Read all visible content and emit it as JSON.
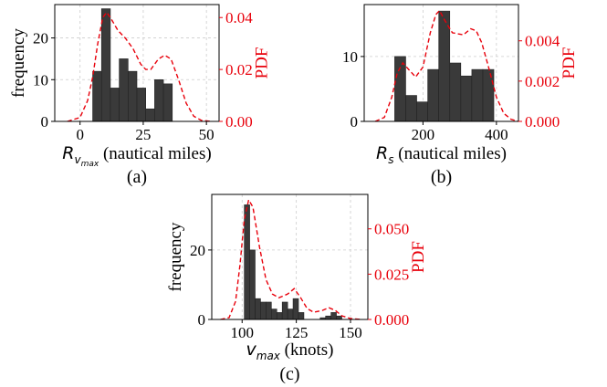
{
  "chart_data": [
    {
      "type": "bar",
      "panel_label": "(a)",
      "xlabel_symbol": "R",
      "xlabel_subscript": "v",
      "xlabel_subsubscript": "max",
      "xlabel_text": " (nautical miles)",
      "ylabel": "frequency",
      "y2label": "PDF",
      "xlim": [
        -10,
        55
      ],
      "ylim": [
        0,
        28
      ],
      "y2lim": [
        0,
        0.045
      ],
      "xticks": [
        "0",
        "25",
        "50"
      ],
      "xtick_values": [
        0,
        25,
        50
      ],
      "yticks": [
        "0",
        "10",
        "20"
      ],
      "ytick_values": [
        0,
        10,
        20
      ],
      "y2ticks": [
        "0.00",
        "0.02",
        "0.04"
      ],
      "y2tick_values": [
        0,
        0.02,
        0.04
      ],
      "grid": true,
      "bins": [
        [
          5,
          8.5,
          12
        ],
        [
          8.5,
          12,
          27
        ],
        [
          12,
          15.5,
          8
        ],
        [
          15.5,
          19,
          15
        ],
        [
          19,
          22.5,
          12
        ],
        [
          22.5,
          26,
          8
        ],
        [
          26,
          29.5,
          3
        ],
        [
          29.5,
          33,
          10
        ],
        [
          33,
          36.5,
          9
        ]
      ],
      "pdf": [
        [
          -5,
          0
        ],
        [
          0,
          0.0015
        ],
        [
          3,
          0.008
        ],
        [
          5,
          0.017
        ],
        [
          7,
          0.03
        ],
        [
          9,
          0.04
        ],
        [
          10.5,
          0.042
        ],
        [
          12,
          0.04
        ],
        [
          15,
          0.035
        ],
        [
          18,
          0.032
        ],
        [
          21,
          0.028
        ],
        [
          24,
          0.022
        ],
        [
          26,
          0.02
        ],
        [
          28,
          0.02
        ],
        [
          31,
          0.024
        ],
        [
          33.5,
          0.0255
        ],
        [
          36,
          0.024
        ],
        [
          39,
          0.016
        ],
        [
          42,
          0.007
        ],
        [
          45,
          0.002
        ],
        [
          48,
          0.0004
        ],
        [
          52,
          0
        ]
      ]
    },
    {
      "type": "bar",
      "panel_label": "(b)",
      "xlabel_symbol": "R",
      "xlabel_subscript": "s",
      "xlabel_subsubscript": "",
      "xlabel_text": " (nautical miles)",
      "ylabel": "",
      "y2label": "PDF",
      "xlim": [
        40,
        460
      ],
      "ylim": [
        0,
        18
      ],
      "y2lim": [
        0,
        0.0058
      ],
      "xticks": [
        "200",
        "400"
      ],
      "xtick_values": [
        200,
        400
      ],
      "yticks": [
        "0",
        "10"
      ],
      "ytick_values": [
        0,
        10
      ],
      "y2ticks": [
        "0.000",
        "0.002",
        "0.004"
      ],
      "y2tick_values": [
        0,
        0.002,
        0.004
      ],
      "grid": true,
      "bins": [
        [
          123,
          153,
          10
        ],
        [
          153,
          183,
          4
        ],
        [
          183,
          213,
          3
        ],
        [
          213,
          243,
          8
        ],
        [
          243,
          273,
          17
        ],
        [
          273,
          303,
          9
        ],
        [
          303,
          333,
          7
        ],
        [
          333,
          363,
          8
        ],
        [
          363,
          393,
          8
        ]
      ],
      "pdf": [
        [
          70,
          0
        ],
        [
          95,
          0.0002
        ],
        [
          115,
          0.0012
        ],
        [
          130,
          0.0024
        ],
        [
          145,
          0.0029
        ],
        [
          160,
          0.0026
        ],
        [
          180,
          0.0022
        ],
        [
          200,
          0.0027
        ],
        [
          220,
          0.0044
        ],
        [
          235,
          0.0053
        ],
        [
          245,
          0.0055
        ],
        [
          260,
          0.005
        ],
        [
          280,
          0.0044
        ],
        [
          310,
          0.0043
        ],
        [
          330,
          0.0046
        ],
        [
          345,
          0.0045
        ],
        [
          360,
          0.0039
        ],
        [
          380,
          0.0026
        ],
        [
          400,
          0.0012
        ],
        [
          420,
          0.0004
        ],
        [
          440,
          0.0001
        ],
        [
          460,
          0
        ]
      ]
    },
    {
      "type": "bar",
      "panel_label": "(c)",
      "xlabel_symbol": "v",
      "xlabel_subscript": "max",
      "xlabel_subsubscript": "",
      "xlabel_text": " (knots)",
      "ylabel": "frequency",
      "y2label": "PDF",
      "xlim": [
        86,
        158
      ],
      "ylim": [
        0,
        36
      ],
      "y2lim": [
        0,
        0.069
      ],
      "xticks": [
        "100",
        "125",
        "150"
      ],
      "xtick_values": [
        100,
        125,
        150
      ],
      "yticks": [
        "0",
        "20"
      ],
      "ytick_values": [
        0,
        20
      ],
      "y2ticks": [
        "0.000",
        "0.025",
        "0.050"
      ],
      "y2tick_values": [
        0,
        0.025,
        0.05
      ],
      "grid": true,
      "bins": [
        [
          101,
          103.5,
          33
        ],
        [
          103.5,
          106,
          20
        ],
        [
          106,
          108.5,
          6
        ],
        [
          108.5,
          111,
          5
        ],
        [
          111,
          113.5,
          5
        ],
        [
          113.5,
          116,
          3
        ],
        [
          116,
          118.5,
          2
        ],
        [
          118.5,
          121,
          5
        ],
        [
          121,
          123.5,
          3
        ],
        [
          123.5,
          126,
          6
        ],
        [
          126,
          128.5,
          2
        ],
        [
          136,
          138.5,
          0.5
        ],
        [
          138.5,
          141,
          1
        ],
        [
          141,
          143.5,
          2
        ],
        [
          143.5,
          146,
          1
        ]
      ],
      "pdf": [
        [
          90,
          0
        ],
        [
          94,
          0.001
        ],
        [
          97,
          0.01
        ],
        [
          99,
          0.03
        ],
        [
          101,
          0.055
        ],
        [
          103,
          0.066
        ],
        [
          105,
          0.062
        ],
        [
          108,
          0.04
        ],
        [
          111,
          0.022
        ],
        [
          114,
          0.014
        ],
        [
          117,
          0.012
        ],
        [
          121,
          0.014
        ],
        [
          124,
          0.017
        ],
        [
          127,
          0.012
        ],
        [
          130,
          0.006
        ],
        [
          133,
          0.004
        ],
        [
          137,
          0.005
        ],
        [
          140,
          0.0065
        ],
        [
          143,
          0.005
        ],
        [
          146,
          0.002
        ],
        [
          150,
          0.0005
        ],
        [
          155,
          0
        ]
      ]
    }
  ]
}
